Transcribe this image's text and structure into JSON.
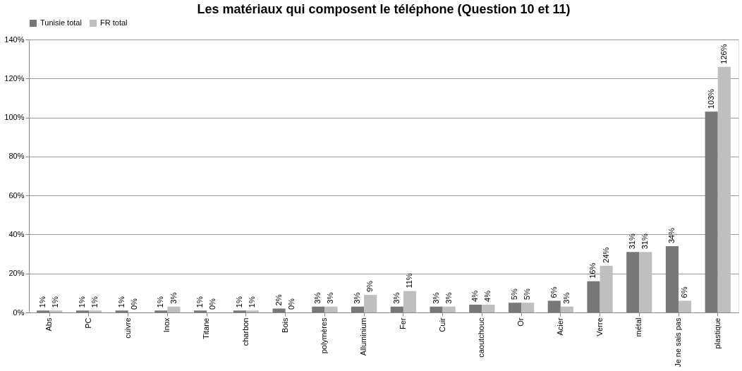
{
  "chart_data": {
    "type": "bar",
    "title": "Les matériaux qui composent le téléphone (Question 10 et 11)",
    "categories": [
      "Abs",
      "PC",
      "cuivre",
      "Inox",
      "Titane",
      "charbon",
      "Bois",
      "polymères",
      "Alluminium",
      "Fer",
      "Cuir",
      "caoutchouc",
      "Or",
      "Acier",
      "Verre",
      "métal",
      "Je ne sais pas",
      "plastique"
    ],
    "series": [
      {
        "name": "Tunisie total",
        "color": "#787878",
        "values": [
          1,
          1,
          1,
          1,
          1,
          1,
          2,
          3,
          3,
          3,
          3,
          4,
          5,
          6,
          16,
          31,
          34,
          103
        ],
        "value_labels": [
          "1%",
          "1%",
          "1%",
          "1%",
          "1%",
          "1%",
          "2%",
          "3%",
          "3%",
          "3%",
          "3%",
          "4%",
          "5%",
          "6%",
          "16%",
          "31%",
          "34%",
          "103%"
        ]
      },
      {
        "name": "FR total",
        "color": "#bfbfbf",
        "values": [
          1,
          1,
          0,
          3,
          0,
          1,
          0,
          3,
          9,
          11,
          3,
          4,
          5,
          3,
          24,
          31,
          6,
          126
        ],
        "value_labels": [
          "1%",
          "1%",
          "0%",
          "3%",
          "0%",
          "1%",
          "0%",
          "3%",
          "9%",
          "11%",
          "3%",
          "4%",
          "5%",
          "3%",
          "24%",
          "31%",
          "6%",
          "126%"
        ]
      }
    ],
    "ylim": [
      0,
      140
    ],
    "yticks": [
      {
        "value": 0,
        "label": "0%"
      },
      {
        "value": 20,
        "label": "20%"
      },
      {
        "value": 40,
        "label": "40%"
      },
      {
        "value": 60,
        "label": "60%"
      },
      {
        "value": 80,
        "label": "80%"
      },
      {
        "value": 100,
        "label": "100%"
      },
      {
        "value": 120,
        "label": "120%"
      },
      {
        "value": 140,
        "label": "140%"
      }
    ],
    "grid": "y",
    "legend": "top"
  }
}
